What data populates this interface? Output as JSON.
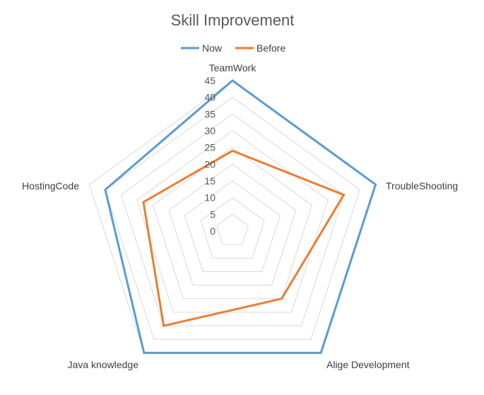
{
  "chart_data": {
    "type": "radar",
    "title": "Skill Improvement",
    "categories": [
      "TeamWork",
      "TroubleShooting",
      "Alige Development",
      "Java knowledge",
      "HostingCode"
    ],
    "series": [
      {
        "name": "Now",
        "values": [
          45,
          45,
          45,
          45,
          40
        ],
        "color": "#5b9bd5"
      },
      {
        "name": "Before",
        "values": [
          24,
          35,
          25,
          35,
          28
        ],
        "color": "#ed7d31"
      }
    ],
    "rlim": [
      0,
      45
    ],
    "ticks": [
      "0",
      "5",
      "10",
      "15",
      "20",
      "25",
      "30",
      "35",
      "40",
      "45"
    ],
    "tick_values": [
      0,
      5,
      10,
      15,
      20,
      25,
      30,
      35,
      40,
      45
    ],
    "grid": true,
    "legend_position": "top"
  }
}
